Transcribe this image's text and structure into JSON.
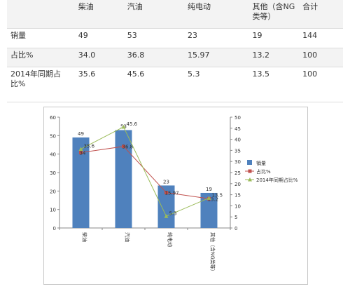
{
  "table": {
    "header": [
      "",
      "柴油",
      "汽油",
      "纯电动",
      "其他（含NG类等）",
      "合计"
    ],
    "rows": [
      [
        "销量",
        "49",
        "53",
        "23",
        "19",
        "144"
      ],
      [
        "占比%",
        "34.0",
        "36.8",
        "15.97",
        "13.2",
        "100"
      ],
      [
        "2014年同期占比%",
        "35.6",
        "45.6",
        "5.3",
        "13.5",
        "100"
      ]
    ]
  },
  "chart_data": {
    "type": "bar",
    "categories": [
      "柴油",
      "汽油",
      "纯电动",
      "其他（含NG类等）"
    ],
    "series": [
      {
        "name": "销量",
        "type": "bar",
        "axis": "left",
        "values": [
          49,
          53,
          23,
          19
        ],
        "labels": [
          "49",
          "53",
          "23",
          "19"
        ],
        "color": "#4f81bd"
      },
      {
        "name": "占比%",
        "type": "line",
        "axis": "right",
        "values": [
          34.0,
          36.8,
          15.97,
          13.2
        ],
        "labels": [
          "34",
          "36.8",
          "15.97",
          "13.2"
        ],
        "color": "#c0504d"
      },
      {
        "name": "2014年同期占比%",
        "type": "line",
        "axis": "right",
        "values": [
          35.6,
          45.6,
          5.3,
          13.5
        ],
        "labels": [
          "35.6",
          "45.6",
          "5.3",
          "13.5"
        ],
        "color": "#9bbb59"
      }
    ],
    "ylim_left": [
      0,
      60
    ],
    "yticks_left": [
      0,
      10,
      20,
      30,
      40,
      50,
      60
    ],
    "ylim_right": [
      0,
      50
    ],
    "yticks_right": [
      0,
      5,
      10,
      15,
      20,
      25,
      30,
      35,
      40,
      45,
      50
    ],
    "grid": false,
    "legend_position": "right"
  }
}
